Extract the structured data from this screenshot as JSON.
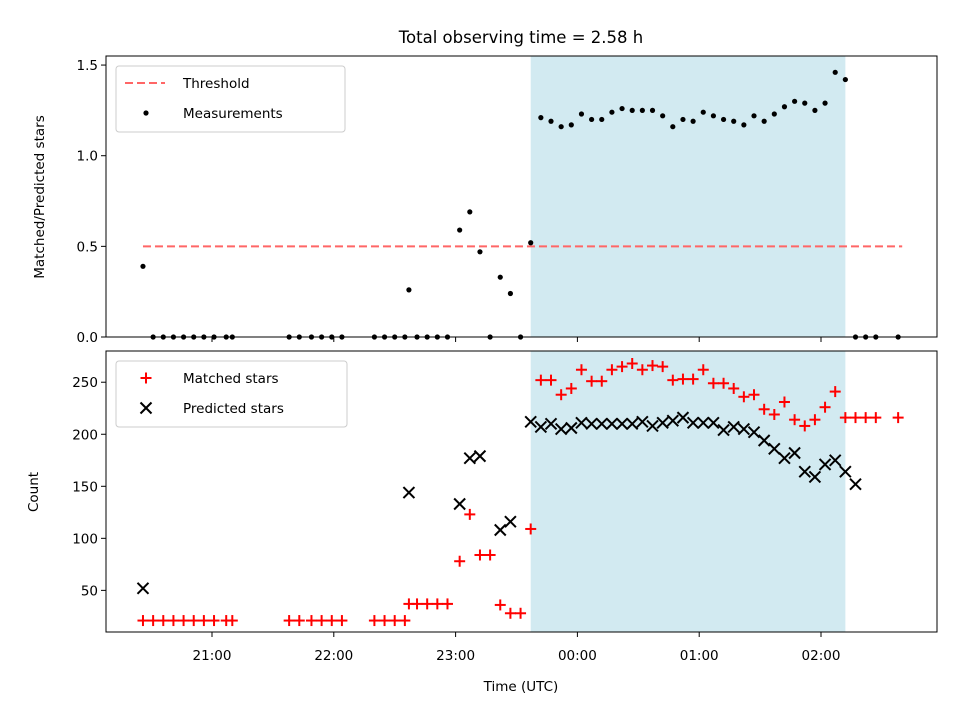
{
  "chart_data": [
    {
      "type": "scatter",
      "title": "Total observing time = 2.58 h",
      "ylabel": "Matched/Predicted stars",
      "xlabel": "",
      "ylim": [
        0,
        1.55
      ],
      "yticks": [
        "0.0",
        "0.5",
        "1.0",
        "1.5"
      ],
      "legend_position": "top-left",
      "shaded_interval": {
        "start": "23:37",
        "end": "02:12",
        "color": "#add8e6"
      },
      "threshold": {
        "name": "Threshold",
        "value": 0.5,
        "x_start": "20:26",
        "x_end": "02:40",
        "color": "#ff6666"
      },
      "series": [
        {
          "name": "Measurements",
          "color": "#000000",
          "marker": "dot",
          "points": [
            [
              "20:26",
              0.39
            ],
            [
              "20:31",
              0.0
            ],
            [
              "20:36",
              0.0
            ],
            [
              "20:41",
              0.0
            ],
            [
              "20:46",
              0.0
            ],
            [
              "20:51",
              0.0
            ],
            [
              "20:56",
              0.0
            ],
            [
              "21:01",
              0.0
            ],
            [
              "21:07",
              0.0
            ],
            [
              "21:10",
              0.0
            ],
            [
              "21:38",
              0.0
            ],
            [
              "21:43",
              0.0
            ],
            [
              "21:49",
              0.0
            ],
            [
              "21:54",
              0.0
            ],
            [
              "21:59",
              0.0
            ],
            [
              "22:04",
              0.0
            ],
            [
              "22:20",
              0.0
            ],
            [
              "22:25",
              0.0
            ],
            [
              "22:30",
              0.0
            ],
            [
              "22:35",
              0.0
            ],
            [
              "22:37",
              0.26
            ],
            [
              "22:41",
              0.0
            ],
            [
              "22:46",
              0.0
            ],
            [
              "22:51",
              0.0
            ],
            [
              "22:56",
              0.0
            ],
            [
              "23:02",
              0.59
            ],
            [
              "23:07",
              0.69
            ],
            [
              "23:12",
              0.47
            ],
            [
              "23:17",
              0.0
            ],
            [
              "23:22",
              0.33
            ],
            [
              "23:27",
              0.24
            ],
            [
              "23:32",
              0.0
            ],
            [
              "23:37",
              0.52
            ],
            [
              "23:42",
              1.21
            ],
            [
              "23:47",
              1.19
            ],
            [
              "23:52",
              1.16
            ],
            [
              "23:57",
              1.17
            ],
            [
              "00:02",
              1.23
            ],
            [
              "00:07",
              1.2
            ],
            [
              "00:12",
              1.2
            ],
            [
              "00:17",
              1.24
            ],
            [
              "00:22",
              1.26
            ],
            [
              "00:27",
              1.25
            ],
            [
              "00:32",
              1.25
            ],
            [
              "00:37",
              1.25
            ],
            [
              "00:42",
              1.22
            ],
            [
              "00:47",
              1.16
            ],
            [
              "00:52",
              1.2
            ],
            [
              "00:57",
              1.19
            ],
            [
              "01:02",
              1.24
            ],
            [
              "01:07",
              1.22
            ],
            [
              "01:12",
              1.2
            ],
            [
              "01:17",
              1.19
            ],
            [
              "01:22",
              1.17
            ],
            [
              "01:27",
              1.22
            ],
            [
              "01:32",
              1.19
            ],
            [
              "01:37",
              1.23
            ],
            [
              "01:42",
              1.27
            ],
            [
              "01:47",
              1.3
            ],
            [
              "01:52",
              1.29
            ],
            [
              "01:57",
              1.25
            ],
            [
              "02:02",
              1.29
            ],
            [
              "02:07",
              1.46
            ],
            [
              "02:12",
              1.42
            ],
            [
              "02:17",
              0.0
            ],
            [
              "02:22",
              0.0
            ],
            [
              "02:27",
              0.0
            ],
            [
              "02:38",
              0.0
            ]
          ]
        }
      ]
    },
    {
      "type": "scatter",
      "title": "",
      "ylabel": "Count",
      "xlabel": "Time (UTC)",
      "ylim": [
        10,
        280
      ],
      "yticks": [
        "50",
        "100",
        "150",
        "200",
        "250"
      ],
      "xticks": [
        "21:00",
        "22:00",
        "23:00",
        "00:00",
        "01:00",
        "02:00"
      ],
      "legend_position": "top-left",
      "shaded_interval": {
        "start": "23:37",
        "end": "02:12",
        "color": "#add8e6"
      },
      "series": [
        {
          "name": "Matched stars",
          "color": "#ff0000",
          "marker": "plus",
          "points": [
            [
              "20:26",
              21
            ],
            [
              "20:31",
              21
            ],
            [
              "20:36",
              21
            ],
            [
              "20:41",
              21
            ],
            [
              "20:46",
              21
            ],
            [
              "20:51",
              21
            ],
            [
              "20:56",
              21
            ],
            [
              "21:01",
              21
            ],
            [
              "21:07",
              21
            ],
            [
              "21:10",
              21
            ],
            [
              "21:38",
              21
            ],
            [
              "21:43",
              21
            ],
            [
              "21:49",
              21
            ],
            [
              "21:54",
              21
            ],
            [
              "21:59",
              21
            ],
            [
              "22:04",
              21
            ],
            [
              "22:20",
              21
            ],
            [
              "22:25",
              21
            ],
            [
              "22:30",
              21
            ],
            [
              "22:35",
              21
            ],
            [
              "22:37",
              37
            ],
            [
              "22:41",
              37
            ],
            [
              "22:46",
              37
            ],
            [
              "22:51",
              37
            ],
            [
              "22:56",
              37
            ],
            [
              "23:02",
              78
            ],
            [
              "23:07",
              123
            ],
            [
              "23:12",
              84
            ],
            [
              "23:17",
              84
            ],
            [
              "23:22",
              36
            ],
            [
              "23:27",
              28
            ],
            [
              "23:32",
              28
            ],
            [
              "23:37",
              109
            ],
            [
              "23:42",
              252
            ],
            [
              "23:47",
              252
            ],
            [
              "23:52",
              238
            ],
            [
              "23:57",
              244
            ],
            [
              "00:02",
              262
            ],
            [
              "00:07",
              251
            ],
            [
              "00:12",
              251
            ],
            [
              "00:17",
              262
            ],
            [
              "00:22",
              265
            ],
            [
              "00:27",
              268
            ],
            [
              "00:32",
              262
            ],
            [
              "00:37",
              266
            ],
            [
              "00:42",
              265
            ],
            [
              "00:47",
              252
            ],
            [
              "00:52",
              253
            ],
            [
              "00:57",
              253
            ],
            [
              "01:02",
              262
            ],
            [
              "01:07",
              249
            ],
            [
              "01:12",
              249
            ],
            [
              "01:17",
              244
            ],
            [
              "01:22",
              236
            ],
            [
              "01:27",
              238
            ],
            [
              "01:32",
              224
            ],
            [
              "01:37",
              219
            ],
            [
              "01:42",
              231
            ],
            [
              "01:47",
              214
            ],
            [
              "01:52",
              208
            ],
            [
              "01:57",
              214
            ],
            [
              "02:02",
              226
            ],
            [
              "02:07",
              241
            ],
            [
              "02:12",
              216
            ],
            [
              "02:17",
              216
            ],
            [
              "02:22",
              216
            ],
            [
              "02:27",
              216
            ],
            [
              "02:38",
              216
            ]
          ]
        },
        {
          "name": "Predicted stars",
          "color": "#000000",
          "marker": "x",
          "points": [
            [
              "20:26",
              52
            ],
            [
              "22:37",
              144
            ],
            [
              "23:02",
              133
            ],
            [
              "23:07",
              177
            ],
            [
              "23:12",
              179
            ],
            [
              "23:22",
              108
            ],
            [
              "23:27",
              116
            ],
            [
              "23:37",
              212
            ],
            [
              "23:42",
              207
            ],
            [
              "23:47",
              210
            ],
            [
              "23:52",
              205
            ],
            [
              "23:57",
              206
            ],
            [
              "00:02",
              211
            ],
            [
              "00:07",
              210
            ],
            [
              "00:12",
              210
            ],
            [
              "00:17",
              210
            ],
            [
              "00:22",
              210
            ],
            [
              "00:27",
              210
            ],
            [
              "00:32",
              212
            ],
            [
              "00:37",
              208
            ],
            [
              "00:42",
              211
            ],
            [
              "00:47",
              213
            ],
            [
              "00:52",
              216
            ],
            [
              "00:57",
              211
            ],
            [
              "01:02",
              211
            ],
            [
              "01:07",
              211
            ],
            [
              "01:12",
              204
            ],
            [
              "01:17",
              207
            ],
            [
              "01:22",
              205
            ],
            [
              "01:27",
              202
            ],
            [
              "01:32",
              194
            ],
            [
              "01:37",
              186
            ],
            [
              "01:42",
              177
            ],
            [
              "01:47",
              182
            ],
            [
              "01:52",
              164
            ],
            [
              "01:57",
              159
            ],
            [
              "02:02",
              171
            ],
            [
              "02:07",
              175
            ],
            [
              "02:12",
              164
            ],
            [
              "02:17",
              152
            ]
          ]
        }
      ]
    }
  ]
}
